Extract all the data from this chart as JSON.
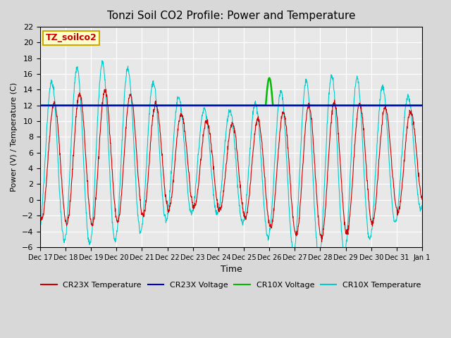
{
  "title": "Tonzi Soil CO2 Profile: Power and Temperature",
  "ylabel": "Power (V) / Temperature (C)",
  "xlabel": "Time",
  "ylim": [
    -6,
    22
  ],
  "yticks": [
    -6,
    -4,
    -2,
    0,
    2,
    4,
    6,
    8,
    10,
    12,
    14,
    16,
    18,
    20,
    22
  ],
  "fig_bg_color": "#d8d8d8",
  "plot_bg_color": "#e8e8e8",
  "grid_color": "white",
  "voltage_value": 12.0,
  "cr23x_voltage_color": "#0000cc",
  "cr10x_voltage_color": "#00bb00",
  "cr23x_temp_color": "#cc0000",
  "cr10x_temp_color": "#00cccc",
  "legend_entries": [
    "CR23X Temperature",
    "CR23X Voltage",
    "CR10X Voltage",
    "CR10X Temperature"
  ],
  "legend_colors": [
    "#cc0000",
    "#0000cc",
    "#00bb00",
    "#00cccc"
  ],
  "label_box_color": "#ffffcc",
  "label_box_edge": "#ccaa00",
  "label_text": "TZ_soilco2",
  "num_days": 15,
  "tick_labels": [
    "Dec 17",
    "Dec 18",
    "Dec 19",
    "Dec 20",
    "Dec 21",
    "Dec 22",
    "Dec 23",
    "Dec 24",
    "Dec 25",
    "Dec 26",
    "Dec 27",
    "Dec 28",
    "Dec 29",
    "Dec 30",
    "Dec 31",
    "Jan 1"
  ]
}
